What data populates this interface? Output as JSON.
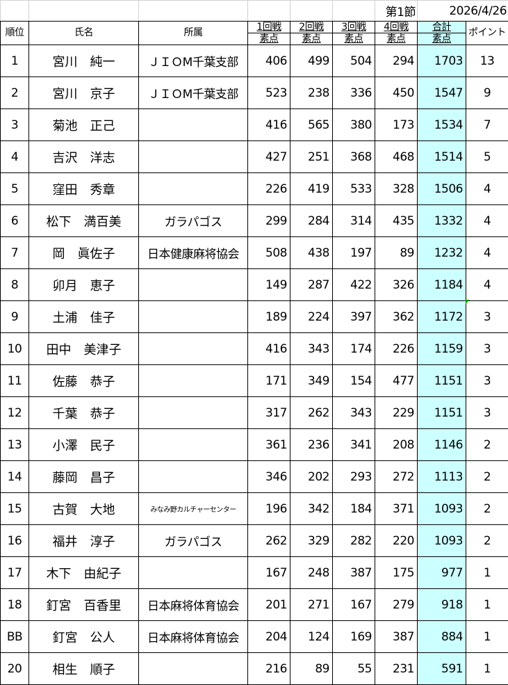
{
  "top": {
    "round": "第1節",
    "date": "2026/4/26"
  },
  "headers": {
    "rank": "順位",
    "name": "氏名",
    "affiliation": "所属",
    "r1": "1回戦",
    "r2": "2回戦",
    "r3": "3回戦",
    "r4": "4回戦",
    "total": "合計",
    "sub": "素点",
    "points": "ポイント"
  },
  "colors": {
    "total_fill": "#ccffff",
    "comment_marker": "#00a000"
  },
  "rows": [
    {
      "rank": "1",
      "name": "宮川　純一",
      "aff": "ＪＩＯM千葉支部",
      "s": [
        "406",
        "499",
        "504",
        "294"
      ],
      "total": "1703",
      "pt": "13"
    },
    {
      "rank": "2",
      "name": "宮川　京子",
      "aff": "ＪＩＯM千葉支部",
      "s": [
        "523",
        "238",
        "336",
        "450"
      ],
      "total": "1547",
      "pt": "9"
    },
    {
      "rank": "3",
      "name": "菊池　正己",
      "aff": "",
      "s": [
        "416",
        "565",
        "380",
        "173"
      ],
      "total": "1534",
      "pt": "7"
    },
    {
      "rank": "4",
      "name": "吉沢　洋志",
      "aff": "",
      "s": [
        "427",
        "251",
        "368",
        "468"
      ],
      "total": "1514",
      "pt": "5"
    },
    {
      "rank": "5",
      "name": "窪田　秀章",
      "aff": "",
      "s": [
        "226",
        "419",
        "533",
        "328"
      ],
      "total": "1506",
      "pt": "4"
    },
    {
      "rank": "6",
      "name": "松下　満百美",
      "aff": "ガラパゴス",
      "s": [
        "299",
        "284",
        "314",
        "435"
      ],
      "total": "1332",
      "pt": "4"
    },
    {
      "rank": "7",
      "name": "岡　眞佐子",
      "aff": "日本健康麻将協会",
      "s": [
        "508",
        "438",
        "197",
        "89"
      ],
      "total": "1232",
      "pt": "4"
    },
    {
      "rank": "8",
      "name": "卯月　恵子",
      "aff": "",
      "s": [
        "149",
        "287",
        "422",
        "326"
      ],
      "total": "1184",
      "pt": "4"
    },
    {
      "rank": "9",
      "name": "土浦　佳子",
      "aff": "",
      "s": [
        "189",
        "224",
        "397",
        "362"
      ],
      "total": "1172",
      "pt": "3"
    },
    {
      "rank": "10",
      "name": "田中　美津子",
      "aff": "",
      "s": [
        "416",
        "343",
        "174",
        "226"
      ],
      "total": "1159",
      "pt": "3"
    },
    {
      "rank": "11",
      "name": "佐藤　恭子",
      "aff": "",
      "s": [
        "171",
        "349",
        "154",
        "477"
      ],
      "total": "1151",
      "pt": "3"
    },
    {
      "rank": "12",
      "name": "千葉　恭子",
      "aff": "",
      "s": [
        "317",
        "262",
        "343",
        "229"
      ],
      "total": "1151",
      "pt": "3"
    },
    {
      "rank": "13",
      "name": "小澤　民子",
      "aff": "",
      "s": [
        "361",
        "236",
        "341",
        "208"
      ],
      "total": "1146",
      "pt": "2"
    },
    {
      "rank": "14",
      "name": "藤岡　昌子",
      "aff": "",
      "s": [
        "346",
        "202",
        "293",
        "272"
      ],
      "total": "1113",
      "pt": "2"
    },
    {
      "rank": "15",
      "name": "古賀　大地",
      "aff": "みなみ野カルチャーセンター",
      "s": [
        "196",
        "342",
        "184",
        "371"
      ],
      "total": "1093",
      "pt": "2"
    },
    {
      "rank": "16",
      "name": "福井　淳子",
      "aff": "ガラパゴス",
      "s": [
        "262",
        "329",
        "282",
        "220"
      ],
      "total": "1093",
      "pt": "2"
    },
    {
      "rank": "17",
      "name": "木下　由紀子",
      "aff": "",
      "s": [
        "167",
        "248",
        "387",
        "175"
      ],
      "total": "977",
      "pt": "1"
    },
    {
      "rank": "18",
      "name": "釘宮　百香里",
      "aff": "日本麻将体育協会",
      "s": [
        "201",
        "271",
        "167",
        "279"
      ],
      "total": "918",
      "pt": "1"
    },
    {
      "rank": "BB",
      "name": "釘宮　公人",
      "aff": "日本麻将体育協会",
      "s": [
        "204",
        "124",
        "169",
        "387"
      ],
      "total": "884",
      "pt": "1"
    },
    {
      "rank": "20",
      "name": "相生　順子",
      "aff": "",
      "s": [
        "216",
        "89",
        "55",
        "231"
      ],
      "total": "591",
      "pt": "1"
    }
  ]
}
